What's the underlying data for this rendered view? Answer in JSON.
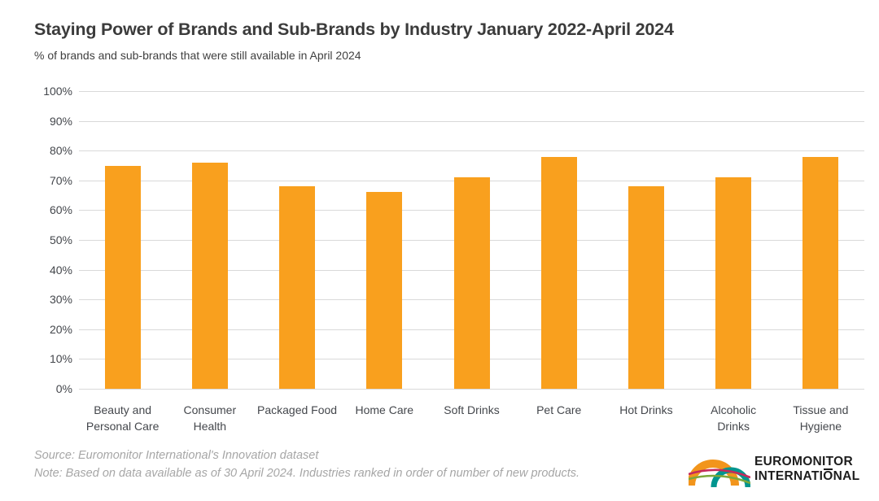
{
  "title": "Staying Power of Brands and Sub-Brands by Industry January 2022-April 2024",
  "subtitle": "% of brands and sub-brands that were still available in April 2024",
  "footer": {
    "source": "Source: Euromonitor International's Innovation dataset",
    "note": "Note: Based on data available as of 30 April 2024. Industries ranked in order of number of new products."
  },
  "logo": {
    "line1": "EUROMONITOR",
    "line2_a": "INTERNATI",
    "line2_o": "O",
    "line2_b": "NAL"
  },
  "colors": {
    "bar": "#F9A01E",
    "grid": "#D9D9D9",
    "axis_text": "#44474C",
    "title_text": "#3B3B3B",
    "footer_text": "#A6A6A6",
    "logo_orange": "#F2951C",
    "logo_teal": "#00958F",
    "logo_crimson": "#C52A5B",
    "logo_green": "#7CA83B"
  },
  "chart_data": {
    "type": "bar",
    "title": "Staying Power of Brands and Sub-Brands by Industry January 2022-April 2024",
    "subtitle": "% of brands and sub-brands that were still available in April 2024",
    "categories": [
      "Beauty and Personal Care",
      "Consumer Health",
      "Packaged Food",
      "Home Care",
      "Soft Drinks",
      "Pet Care",
      "Hot Drinks",
      "Alcoholic Drinks",
      "Tissue and Hygiene"
    ],
    "values": [
      75,
      76,
      68,
      66,
      71,
      78,
      68,
      71,
      78
    ],
    "xlabel": "",
    "ylabel": "",
    "ylim": [
      0,
      100
    ],
    "yticks": [
      "0%",
      "10%",
      "20%",
      "30%",
      "40%",
      "50%",
      "60%",
      "70%",
      "80%",
      "90%",
      "100%"
    ],
    "grid": true,
    "legend": false,
    "bar_color": "#F9A01E"
  }
}
